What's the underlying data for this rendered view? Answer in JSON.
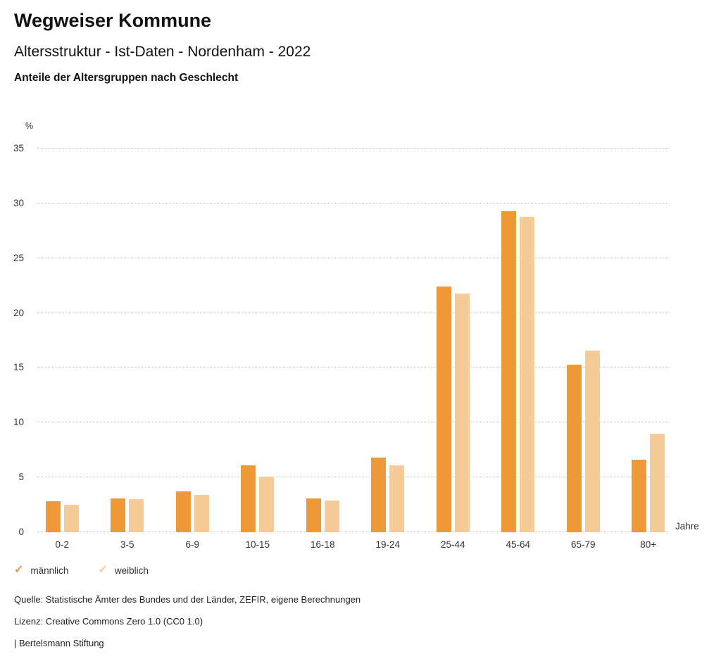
{
  "header": {
    "title": "Wegweiser Kommune",
    "subtitle": "Altersstruktur - Ist-Daten - Nordenham - 2022",
    "chart_heading": "Anteile der Altersgruppen nach Geschlecht"
  },
  "chart_data": {
    "type": "bar",
    "categories": [
      "0-2",
      "3-5",
      "6-9",
      "10-15",
      "16-18",
      "19-24",
      "25-44",
      "45-64",
      "65-79",
      "80+"
    ],
    "series": [
      {
        "name": "männlich",
        "color": "#EE9938",
        "values": [
          2.8,
          3.1,
          3.7,
          6.1,
          3.1,
          6.8,
          22.4,
          29.3,
          15.3,
          6.6
        ]
      },
      {
        "name": "weiblich",
        "color": "#F5CB98",
        "values": [
          2.5,
          3.0,
          3.4,
          5.1,
          2.9,
          6.1,
          21.8,
          28.8,
          16.6,
          9.0
        ]
      }
    ],
    "ylabel": "%",
    "xlabel": "Jahre",
    "ylim": [
      0,
      35
    ],
    "ytick_step": 5,
    "grid": "horizontal-dotted",
    "legend_position": "bottom-left"
  },
  "legend": {
    "check_glyph": "✓"
  },
  "footer": {
    "source": "Quelle: Statistische Ämter des Bundes und der Länder, ZEFIR, eigene Berechnungen",
    "license": "Lizenz: Creative Commons Zero 1.0 (CC0 1.0)",
    "attribution": "| Bertelsmann Stiftung"
  }
}
